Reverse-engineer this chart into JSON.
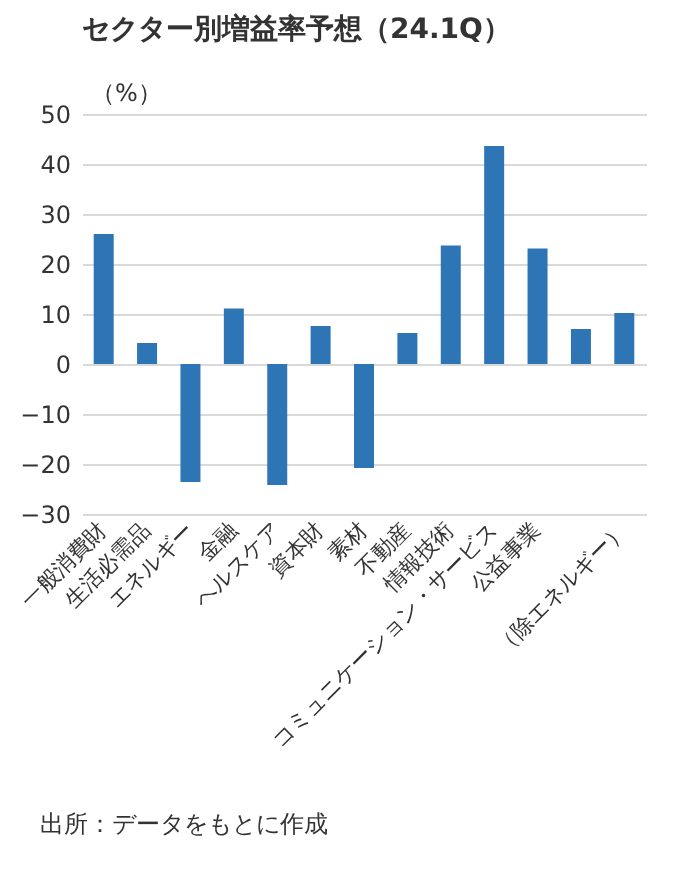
{
  "chart_data": {
    "type": "bar",
    "title": "セクター別増益率予想（24.1Q）",
    "ylabel": "（%）",
    "categories": [
      "一般消費財",
      "生活必需品",
      "エネルギー",
      "金融",
      "ヘルスケア",
      "資本財",
      "素材",
      "不動産",
      "情報技術",
      "コミュニケーション・サービス",
      "公益事業",
      null,
      "（除エネルギー）"
    ],
    "values": [
      26.0,
      4.2,
      -23.6,
      11.1,
      -24.2,
      7.6,
      -20.8,
      6.2,
      23.7,
      43.6,
      23.1,
      7.0,
      10.2
    ],
    "color": "#2e75b6",
    "ylim": [
      -30,
      50
    ],
    "yticks": [
      -30,
      -20,
      -10,
      0,
      10,
      20,
      30,
      40,
      50
    ],
    "grid": "y",
    "annotations": [
      "出所：データをもとに作成"
    ]
  }
}
